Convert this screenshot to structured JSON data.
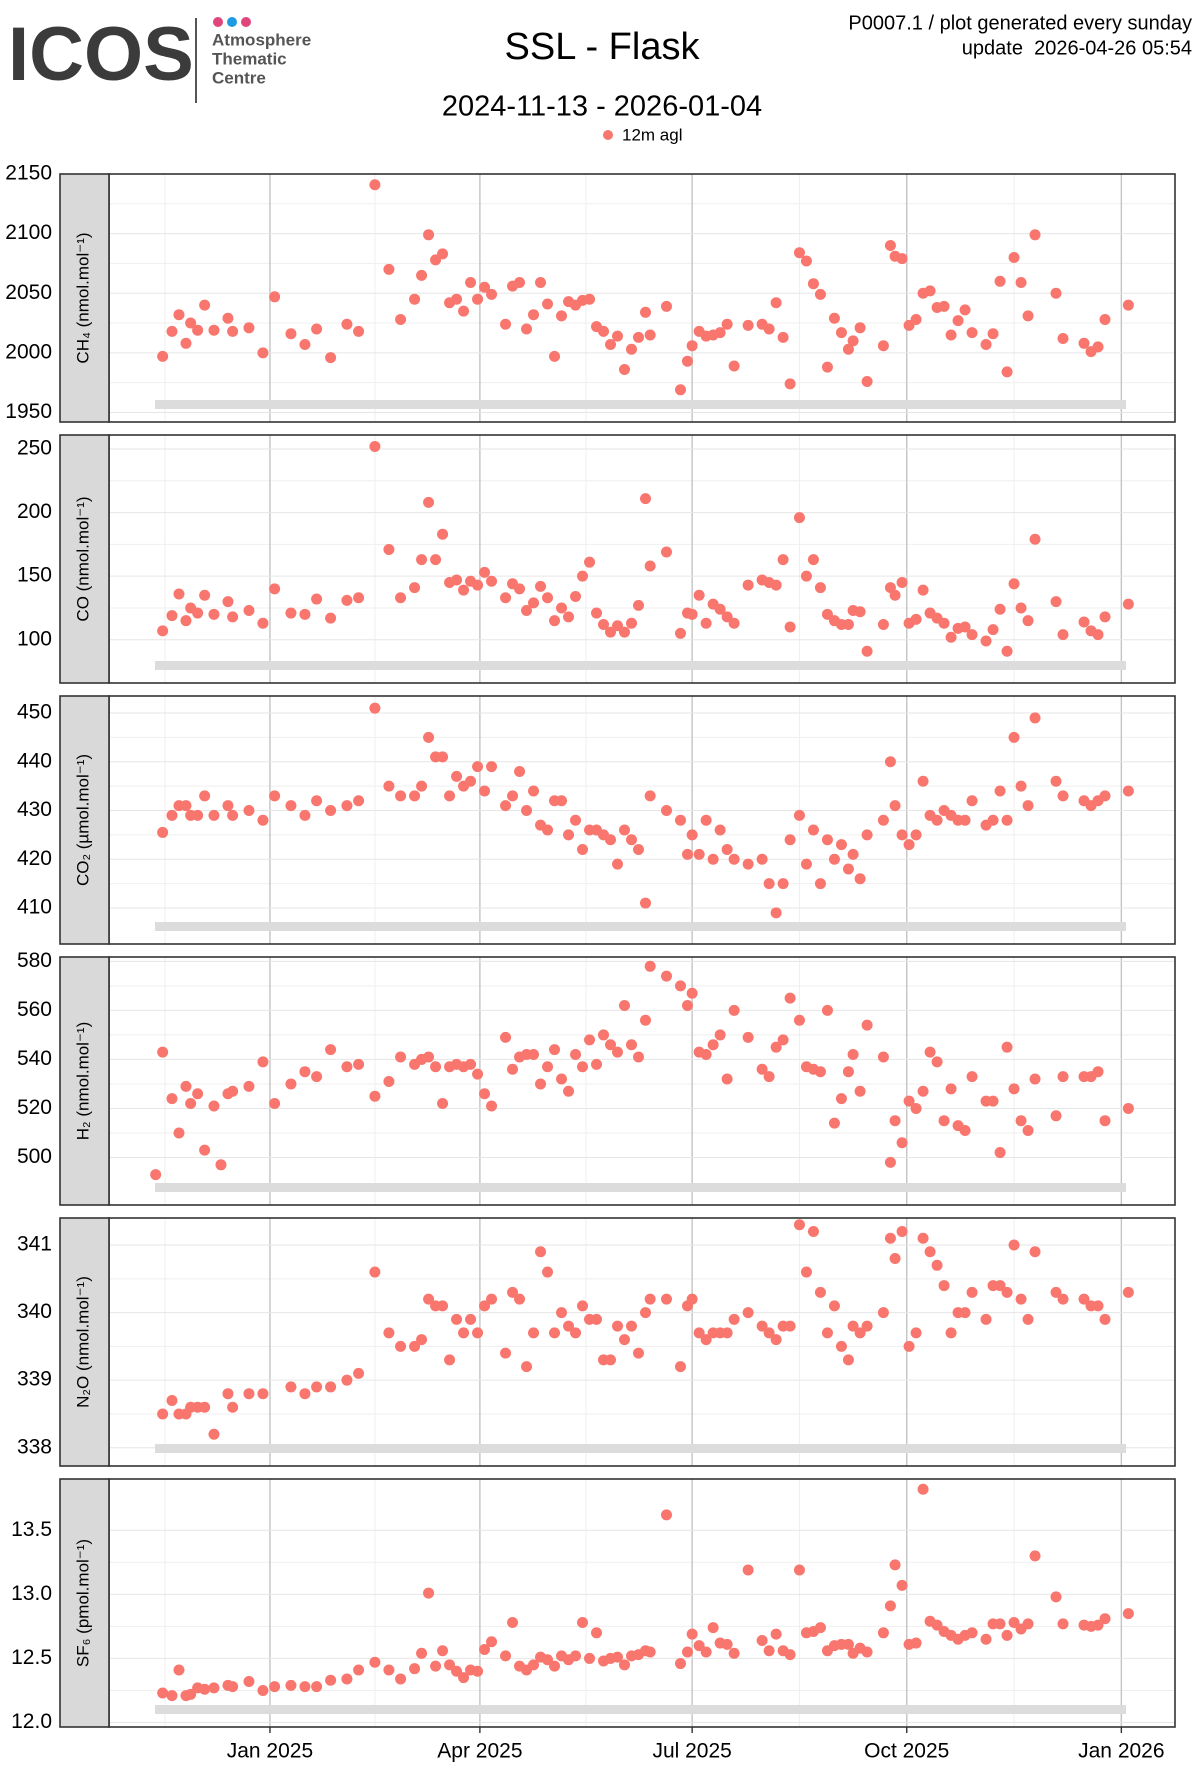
{
  "header": {
    "logo": {
      "name": "ICOS",
      "lines": [
        "Atmosphere",
        "Thematic",
        "Centre"
      ]
    },
    "info": [
      "P0007.1 / plot generated every sunday",
      "update  2026-04-26 05:54"
    ]
  },
  "chart_data": {
    "type": "scatter",
    "title": "SSL - Flask",
    "subtitle": "2024-11-13 - 2026-01-04",
    "series_name": "12m agl",
    "color": "#f8766d",
    "grid": true,
    "xlim": [
      "2024-10-24",
      "2026-01-24"
    ],
    "xticks": [
      {
        "value": "2025-01-01",
        "label": "Jan 2025"
      },
      {
        "value": "2025-04-01",
        "label": "Apr 2025"
      },
      {
        "value": "2025-07-01",
        "label": "Jul 2025"
      },
      {
        "value": "2025-10-01",
        "label": "Oct 2025"
      },
      {
        "value": "2026-01-01",
        "label": "Jan 2026"
      }
    ],
    "x": [
      "2024-11-13",
      "2024-11-16",
      "2024-11-20",
      "2024-11-23",
      "2024-11-26",
      "2024-11-28",
      "2024-12-01",
      "2024-12-04",
      "2024-12-08",
      "2024-12-11",
      "2024-12-14",
      "2024-12-16",
      "2024-12-23",
      "2024-12-29",
      "2025-01-03",
      "2025-01-10",
      "2025-01-16",
      "2025-01-21",
      "2025-01-27",
      "2025-02-03",
      "2025-02-08",
      "2025-02-15",
      "2025-02-21",
      "2025-02-26",
      "2025-03-04",
      "2025-03-07",
      "2025-03-10",
      "2025-03-13",
      "2025-03-16",
      "2025-03-19",
      "2025-03-22",
      "2025-03-25",
      "2025-03-28",
      "2025-03-31",
      "2025-04-03",
      "2025-04-06",
      "2025-04-12",
      "2025-04-15",
      "2025-04-18",
      "2025-04-21",
      "2025-04-24",
      "2025-04-27",
      "2025-04-30",
      "2025-05-03",
      "2025-05-06",
      "2025-05-09",
      "2025-05-12",
      "2025-05-15",
      "2025-05-18",
      "2025-05-21",
      "2025-05-24",
      "2025-05-27",
      "2025-05-30",
      "2025-06-02",
      "2025-06-05",
      "2025-06-08",
      "2025-06-11",
      "2025-06-13",
      "2025-06-20",
      "2025-06-26",
      "2025-06-29",
      "2025-07-01",
      "2025-07-04",
      "2025-07-07",
      "2025-07-10",
      "2025-07-13",
      "2025-07-16",
      "2025-07-19",
      "2025-07-25",
      "2025-07-31",
      "2025-08-03",
      "2025-08-06",
      "2025-08-09",
      "2025-08-12",
      "2025-08-16",
      "2025-08-19",
      "2025-08-22",
      "2025-08-25",
      "2025-08-28",
      "2025-08-31",
      "2025-09-03",
      "2025-09-06",
      "2025-09-08",
      "2025-09-11",
      "2025-09-14",
      "2025-09-21",
      "2025-09-24",
      "2025-09-26",
      "2025-09-29",
      "2025-10-02",
      "2025-10-05",
      "2025-10-08",
      "2025-10-11",
      "2025-10-14",
      "2025-10-17",
      "2025-10-20",
      "2025-10-23",
      "2025-10-26",
      "2025-10-29",
      "2025-11-04",
      "2025-11-07",
      "2025-11-10",
      "2025-11-13",
      "2025-11-16",
      "2025-11-19",
      "2025-11-22",
      "2025-11-25",
      "2025-12-04",
      "2025-12-07",
      "2025-12-16",
      "2025-12-19",
      "2025-12-22",
      "2025-12-25",
      "2026-01-04"
    ],
    "panels": [
      {
        "ylabel": "CH₄ (nmol.mol⁻¹)",
        "ylim": [
          1942,
          2150
        ],
        "yticks": [
          1950,
          2000,
          2050,
          2100,
          2150
        ],
        "values": [
          null,
          1997,
          2018,
          2032,
          2008,
          2025,
          2019,
          2040,
          2019,
          null,
          2029,
          2018,
          2021,
          2000,
          2047,
          2016,
          2007,
          2020,
          1996,
          2024,
          2018,
          2141,
          2070,
          2028,
          2045,
          2065,
          2099,
          2078,
          2083,
          2042,
          2045,
          2035,
          2059,
          2045,
          2055,
          2049,
          2024,
          2056,
          2059,
          2020,
          2032,
          2059,
          2041,
          1997,
          2031,
          2043,
          2040,
          2044,
          2045,
          2022,
          2018,
          2007,
          2014,
          1986,
          2003,
          2013,
          2034,
          2015,
          2039,
          1969,
          1993,
          2006,
          2018,
          2014,
          2015,
          2017,
          2024,
          1989,
          2023,
          2024,
          2020,
          2042,
          2013,
          1974,
          2084,
          2077,
          2058,
          2049,
          1988,
          2029,
          2017,
          2003,
          2010,
          2021,
          1976,
          2006,
          2090,
          2081,
          2079,
          2023,
          2028,
          2050,
          2052,
          2038,
          2039,
          2015,
          2027,
          2036,
          2017,
          2007,
          2016,
          2060,
          1984,
          2080,
          2059,
          2031,
          2099,
          2050,
          2012,
          2008,
          2001,
          2005,
          2028,
          2040
        ]
      },
      {
        "ylabel": "CO (nmol.mol⁻¹)",
        "ylim": [
          66,
          261
        ],
        "yticks": [
          100,
          150,
          200,
          250
        ],
        "values": [
          null,
          107,
          119,
          136,
          115,
          125,
          121,
          135,
          120,
          null,
          130,
          118,
          123,
          113,
          140,
          121,
          120,
          132,
          117,
          131,
          133,
          252,
          171,
          133,
          141,
          163,
          208,
          163,
          183,
          145,
          147,
          139,
          146,
          143,
          153,
          146,
          133,
          144,
          140,
          123,
          129,
          142,
          133,
          115,
          125,
          118,
          134,
          150,
          161,
          121,
          112,
          106,
          111,
          106,
          113,
          127,
          211,
          158,
          169,
          105,
          121,
          120,
          135,
          113,
          128,
          124,
          118,
          113,
          143,
          147,
          145,
          143,
          163,
          110,
          196,
          150,
          163,
          141,
          120,
          115,
          112,
          112,
          123,
          122,
          91,
          112,
          141,
          135,
          145,
          113,
          116,
          139,
          121,
          117,
          113,
          102,
          109,
          110,
          104,
          99,
          108,
          124,
          91,
          144,
          125,
          115,
          179,
          130,
          104,
          114,
          107,
          104,
          118,
          128
        ]
      },
      {
        "ylabel": "CO₂ (µmol.mol⁻¹)",
        "ylim": [
          402.6,
          453.5
        ],
        "yticks": [
          410,
          420,
          430,
          440,
          450
        ],
        "values": [
          null,
          425.5,
          429,
          431,
          431,
          429,
          429,
          433,
          429,
          null,
          431,
          429,
          430,
          428,
          433,
          431,
          429,
          432,
          430,
          431,
          432,
          451,
          435,
          433,
          433,
          435,
          445,
          441,
          441,
          433,
          437,
          435,
          436,
          439,
          434,
          439,
          431,
          433,
          438,
          430,
          434,
          427,
          426,
          432,
          432,
          425,
          428,
          422,
          426,
          426,
          425,
          424,
          419,
          426,
          424,
          422,
          411,
          433,
          430,
          428,
          421,
          425,
          421,
          428,
          420,
          426,
          422,
          420,
          419,
          420,
          415,
          409,
          415,
          424,
          429,
          419,
          426,
          415,
          424,
          420,
          423,
          418,
          421,
          416,
          425,
          428,
          440,
          431,
          425,
          423,
          425,
          436,
          429,
          428,
          430,
          429,
          428,
          428,
          432,
          427,
          428,
          434,
          428,
          445,
          435,
          431,
          449,
          436,
          433,
          432,
          431,
          432,
          433,
          434
        ]
      },
      {
        "ylabel": "H₂ (nmol.mol⁻¹)",
        "ylim": [
          480.6,
          581.8
        ],
        "yticks": [
          500,
          520,
          540,
          560,
          580
        ],
        "values": [
          493,
          543,
          524,
          510,
          529,
          522,
          526,
          503,
          521,
          497,
          526,
          527,
          529,
          539,
          522,
          530,
          535,
          533,
          544,
          537,
          538,
          525,
          531,
          541,
          538,
          540,
          541,
          537,
          522,
          537,
          538,
          537,
          538,
          534,
          526,
          521,
          549,
          536,
          541,
          542,
          542,
          530,
          537,
          544,
          532,
          527,
          542,
          537,
          548,
          538,
          550,
          546,
          543,
          562,
          546,
          541,
          556,
          578,
          574,
          570,
          562,
          567,
          543,
          542,
          546,
          550,
          532,
          560,
          549,
          536,
          533,
          545,
          548,
          565,
          556,
          537,
          536,
          535,
          560,
          514,
          524,
          535,
          542,
          527,
          554,
          541,
          498,
          515,
          506,
          523,
          520,
          527,
          543,
          539,
          515,
          528,
          513,
          511,
          533,
          523,
          523,
          502,
          545,
          528,
          515,
          511,
          532,
          517,
          533,
          533,
          533,
          535,
          515,
          520
        ]
      },
      {
        "ylabel": "N₂O (nmol.mol⁻¹)",
        "ylim": [
          337.73,
          341.4
        ],
        "yticks": [
          338,
          339,
          340,
          341
        ],
        "values": [
          null,
          338.5,
          338.7,
          338.5,
          338.5,
          338.6,
          338.6,
          338.6,
          338.2,
          null,
          338.8,
          338.6,
          338.8,
          338.8,
          null,
          338.9,
          338.8,
          338.9,
          338.9,
          339.0,
          339.1,
          340.6,
          339.7,
          339.5,
          339.5,
          339.6,
          340.2,
          340.1,
          340.1,
          339.3,
          339.9,
          339.7,
          339.9,
          339.7,
          340.1,
          340.2,
          339.4,
          340.3,
          340.2,
          339.2,
          339.7,
          340.9,
          340.6,
          339.7,
          340.0,
          339.8,
          339.7,
          340.1,
          339.9,
          339.9,
          339.3,
          339.3,
          339.8,
          339.6,
          339.8,
          339.4,
          340.0,
          340.2,
          340.2,
          339.2,
          340.1,
          340.2,
          339.7,
          339.6,
          339.7,
          339.7,
          339.7,
          339.9,
          340.0,
          339.8,
          339.7,
          339.6,
          339.8,
          339.8,
          341.3,
          340.6,
          341.2,
          340.3,
          339.7,
          340.1,
          339.5,
          339.3,
          339.8,
          339.7,
          339.8,
          340.0,
          341.1,
          340.8,
          341.2,
          339.5,
          339.7,
          341.1,
          340.9,
          340.7,
          340.4,
          339.7,
          340.0,
          340.0,
          340.3,
          339.9,
          340.4,
          340.4,
          340.3,
          341.0,
          340.2,
          339.9,
          340.9,
          340.3,
          340.2,
          340.2,
          340.1,
          340.1,
          339.9,
          340.3
        ]
      },
      {
        "ylabel": "SF₆ (pmol.mol⁻¹)",
        "ylim": [
          11.965,
          13.9
        ],
        "yticks": [
          {
            "value": 12.0,
            "label": "12.0"
          },
          12.5,
          {
            "value": 13.0,
            "label": "13.0"
          },
          13.5
        ],
        "values": [
          null,
          12.23,
          12.21,
          12.41,
          12.21,
          12.22,
          12.27,
          12.26,
          12.27,
          null,
          12.29,
          12.28,
          12.32,
          12.25,
          12.28,
          12.29,
          12.28,
          12.28,
          12.33,
          12.34,
          12.41,
          12.47,
          12.41,
          12.34,
          12.42,
          12.54,
          13.01,
          12.44,
          12.56,
          12.45,
          12.4,
          12.35,
          12.41,
          12.4,
          12.57,
          12.63,
          12.52,
          12.78,
          12.44,
          12.41,
          12.45,
          12.51,
          12.49,
          12.44,
          12.52,
          12.49,
          12.52,
          12.78,
          12.5,
          12.7,
          12.48,
          12.5,
          12.51,
          12.45,
          12.52,
          12.53,
          12.56,
          12.55,
          13.62,
          12.46,
          12.55,
          12.69,
          12.6,
          12.55,
          12.74,
          12.62,
          12.61,
          12.54,
          13.19,
          12.64,
          12.56,
          12.69,
          12.56,
          12.53,
          13.19,
          12.7,
          12.71,
          12.74,
          12.56,
          12.6,
          12.61,
          12.61,
          12.54,
          12.58,
          12.55,
          12.7,
          12.91,
          13.23,
          13.07,
          12.61,
          12.62,
          13.82,
          12.79,
          12.76,
          12.71,
          12.68,
          12.65,
          12.68,
          12.7,
          12.65,
          12.77,
          12.77,
          12.68,
          12.78,
          12.73,
          12.77,
          13.3,
          12.98,
          12.77,
          12.76,
          12.75,
          12.76,
          12.81,
          12.85
        ]
      }
    ]
  }
}
